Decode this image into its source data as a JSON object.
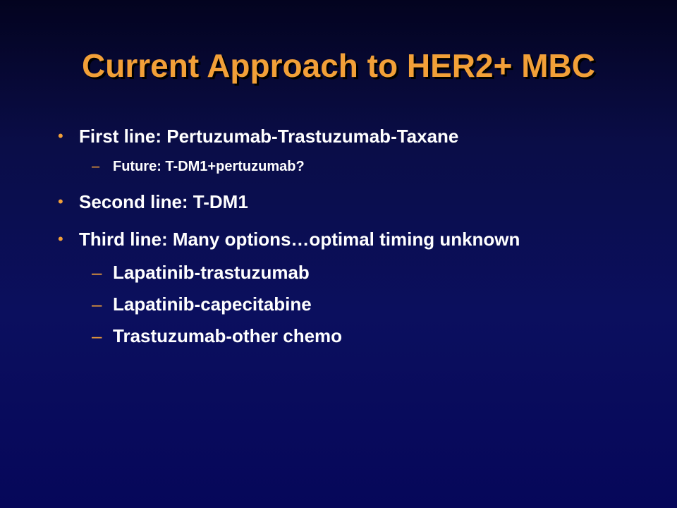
{
  "slide": {
    "title": "Current Approach to HER2+ MBC",
    "bullet_marker": "•",
    "dash_marker": "–",
    "items": [
      {
        "text": "First line: Pertuzumab-Trastuzumab-Taxane"
      },
      {
        "text": "Future: T-DM1+pertuzumab?"
      },
      {
        "text": "Second line: T-DM1"
      },
      {
        "text": "Third line: Many options…optimal timing unknown"
      },
      {
        "text": "Lapatinib-trastuzumab"
      },
      {
        "text": "Lapatinib-capecitabine"
      },
      {
        "text": "Trastuzumab-other chemo"
      }
    ]
  },
  "colors": {
    "title": "#f2a038",
    "bullet": "#f2a038",
    "body_text": "#ffffff",
    "background_top": "#03031f",
    "background_bottom": "#06075a"
  }
}
